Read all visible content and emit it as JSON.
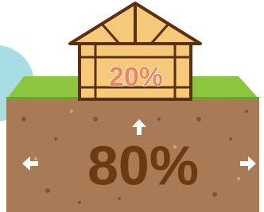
{
  "house_label": "20%",
  "ground_label": "80%"
}
